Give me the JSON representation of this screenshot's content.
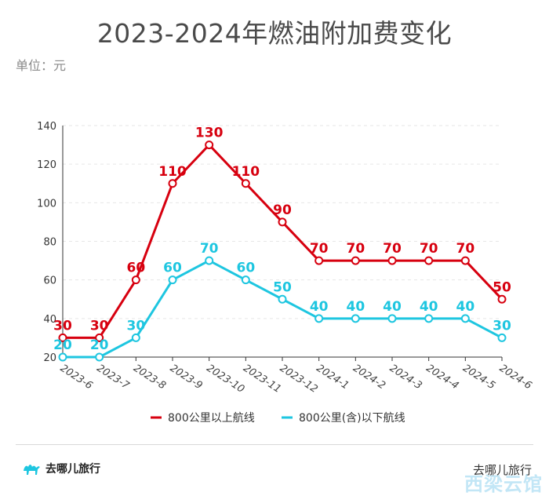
{
  "header": {
    "title": "2023-2024年燃油附加费变化",
    "unit": "单位：元"
  },
  "footer": {
    "brand": "去哪儿旅行",
    "source": "去哪儿旅行",
    "watermark": "西梁云馆"
  },
  "colors": {
    "series1": "#d7000f",
    "series2": "#1ec6e0",
    "axis": "#333333",
    "grid": "#e6e6e6"
  },
  "chart_data": {
    "type": "line",
    "title": "2023-2024年燃油附加费变化",
    "ylabel": "单位：元",
    "xlabel": "",
    "ylim": [
      20,
      140
    ],
    "yticks": [
      20,
      40,
      60,
      80,
      100,
      120,
      140
    ],
    "grid": true,
    "legend": "bottom",
    "categories": [
      "2023-6",
      "2023-7",
      "2023-8",
      "2023-9",
      "2023-10",
      "2023-11",
      "2023-12",
      "2024-1",
      "2024-2",
      "2024-3",
      "2024-4",
      "2024-5",
      "2024-6"
    ],
    "series": [
      {
        "name": "800公里以上航线",
        "color": "#d7000f",
        "values": [
          30,
          30,
          60,
          110,
          130,
          110,
          90,
          70,
          70,
          70,
          70,
          70,
          50
        ]
      },
      {
        "name": "800公里(含)以下航线",
        "color": "#1ec6e0",
        "values": [
          20,
          20,
          30,
          60,
          70,
          60,
          50,
          40,
          40,
          40,
          40,
          40,
          30
        ]
      }
    ]
  }
}
